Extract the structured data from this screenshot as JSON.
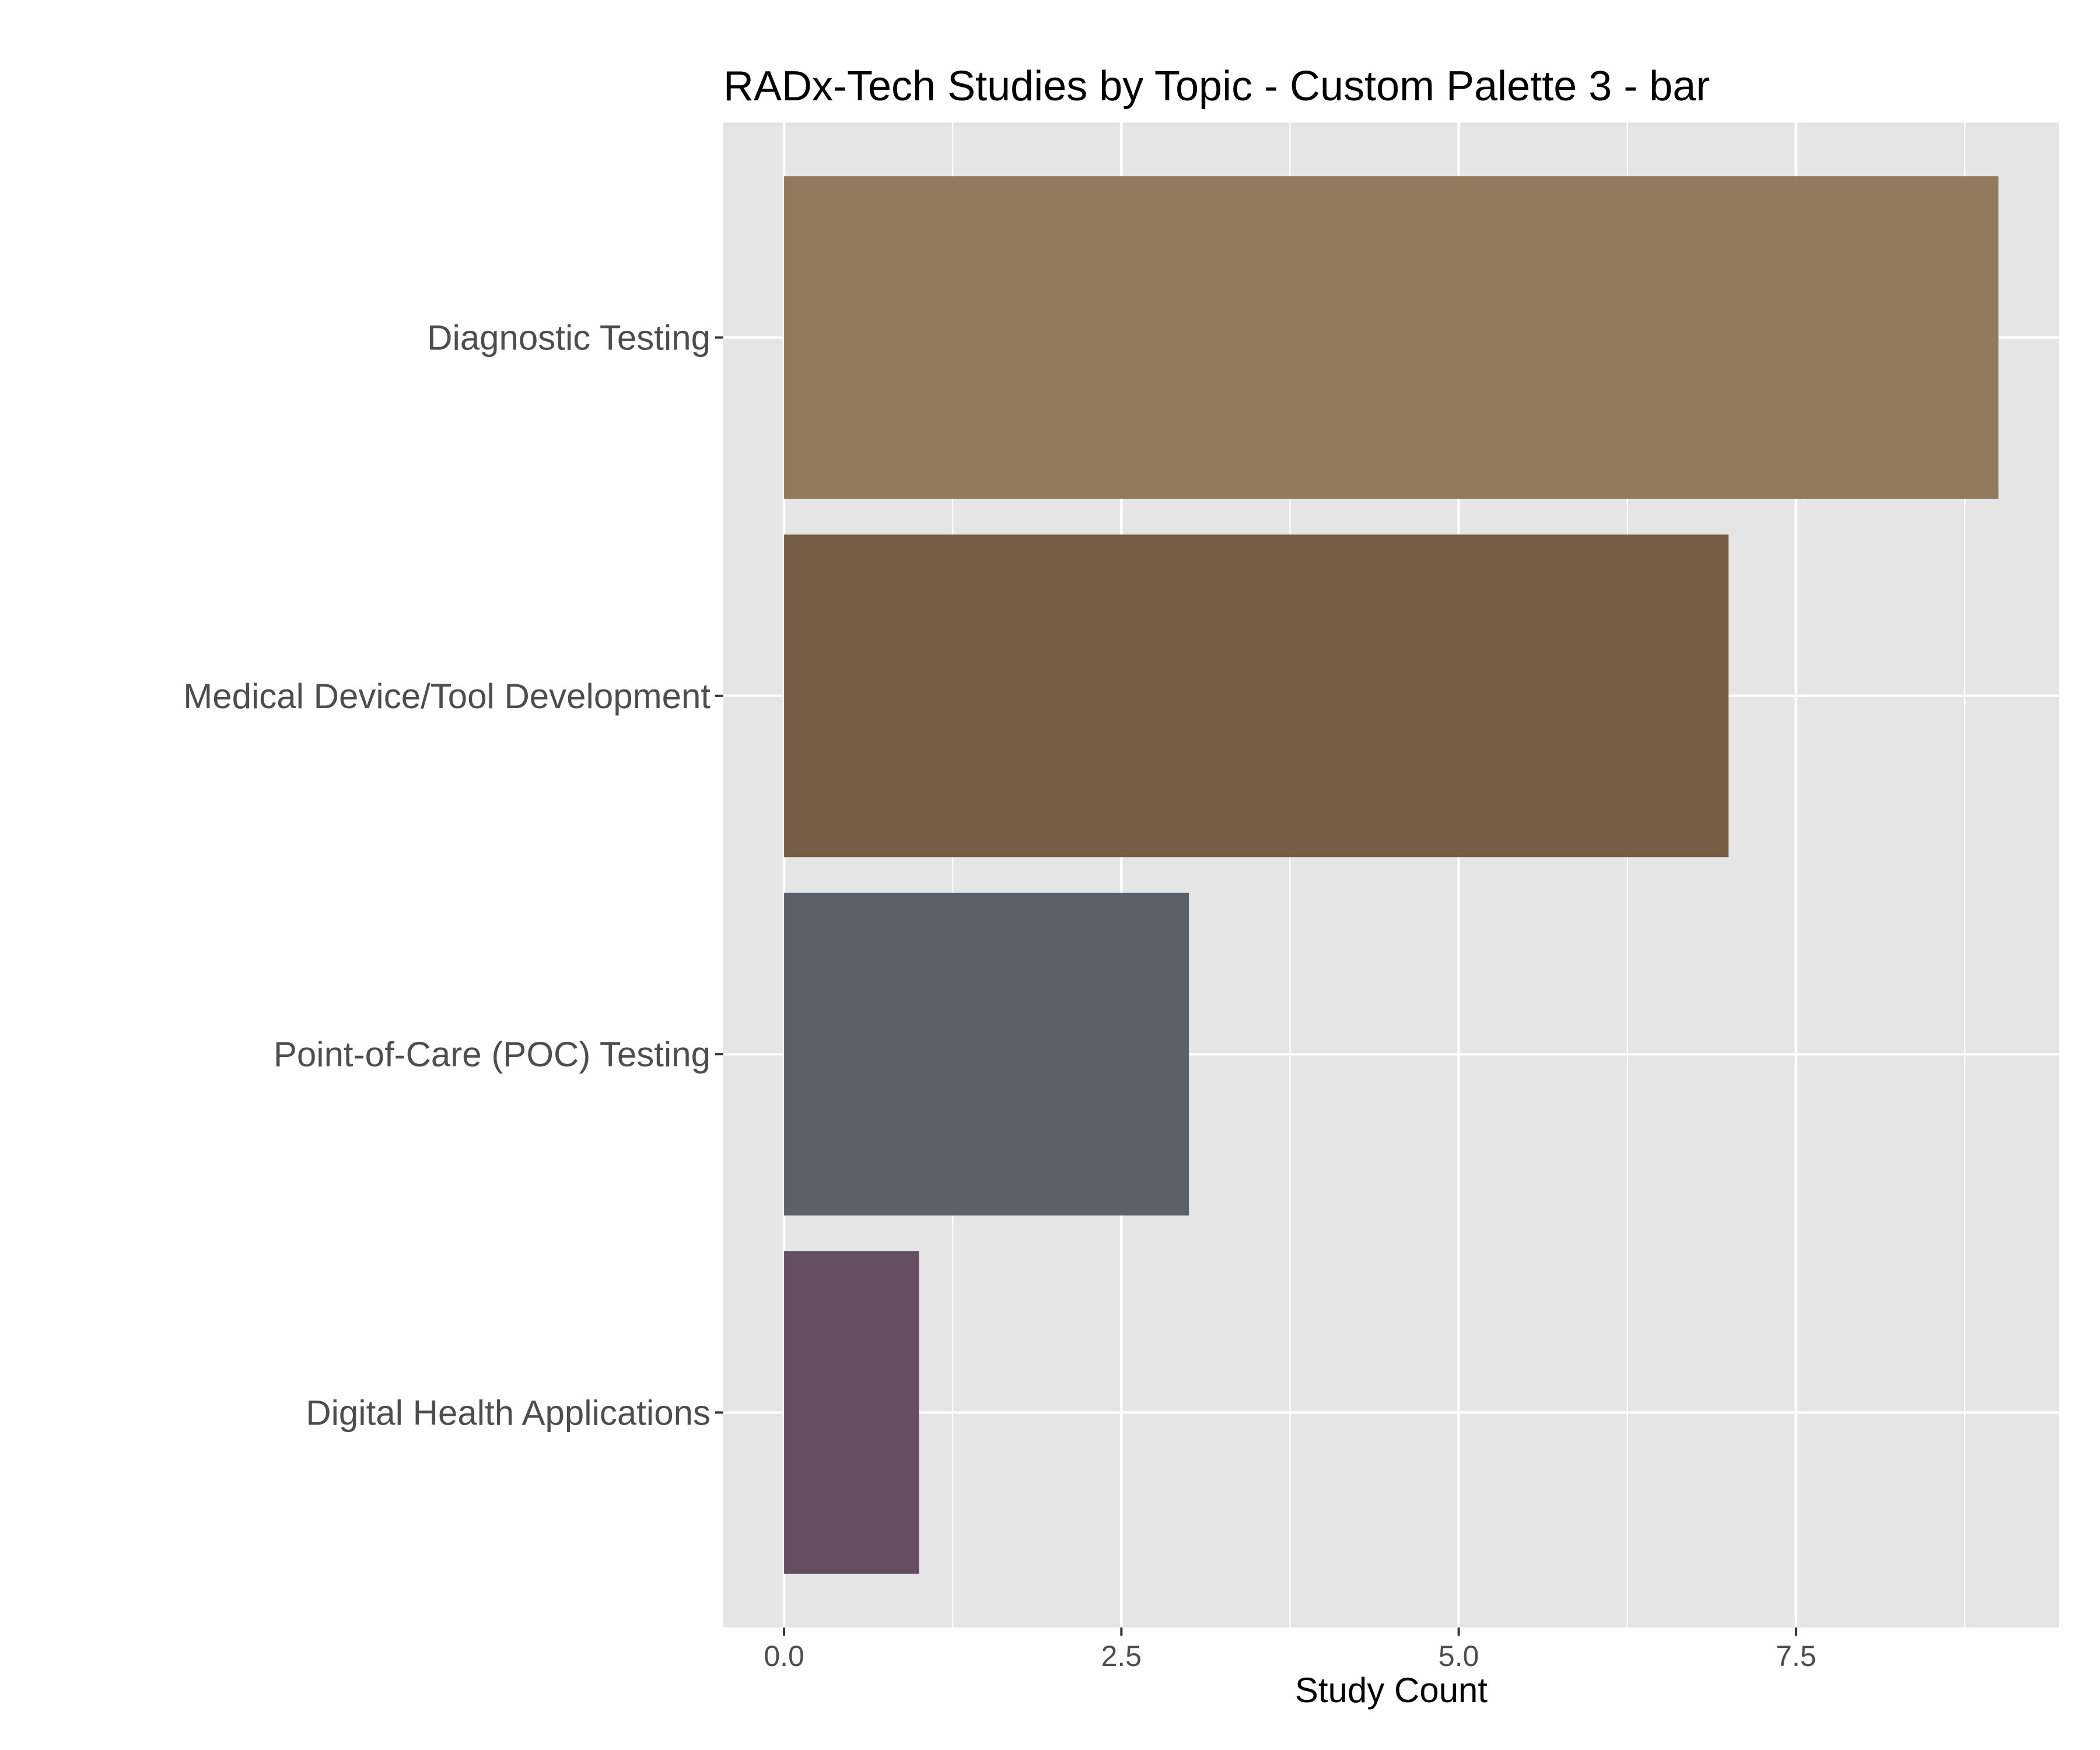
{
  "chart_data": {
    "type": "bar",
    "orientation": "horizontal",
    "title": "RADx-Tech Studies by Topic - Custom Palette 3 - bar",
    "xlabel": "Study Count",
    "ylabel": "",
    "categories": [
      "Diagnostic Testing",
      "Medical Device/Tool Development",
      "Point-of-Care (POC) Testing",
      "Digital Health Applications"
    ],
    "values": [
      9,
      7,
      3,
      1
    ],
    "colors": [
      "#937a5c",
      "#765e45",
      "#5a6169",
      "#644e62"
    ],
    "xlim": [
      -0.45,
      9.45
    ],
    "xticks": [
      0,
      2.5,
      5,
      7.5
    ],
    "xtick_labels": [
      "0.0",
      "2.5",
      "5.0",
      "7.5"
    ],
    "grid": true,
    "legend": "none",
    "panel_background": "#e5e5e5",
    "grid_color": "#ffffff"
  }
}
